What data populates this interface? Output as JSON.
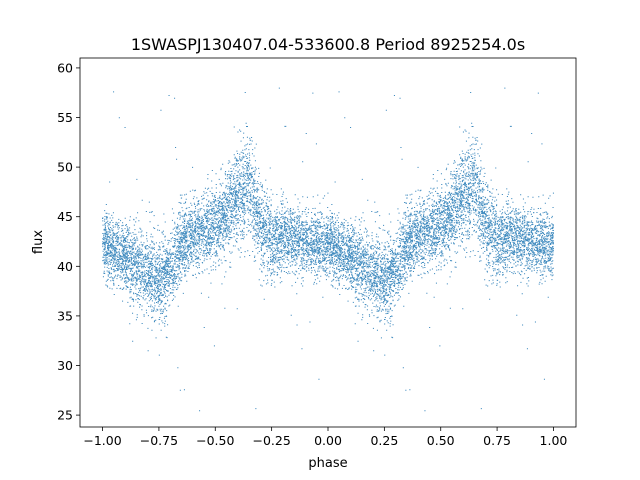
{
  "chart_data": {
    "type": "scatter",
    "title": "1SWASPJ130407.04-533600.8 Period 8925254.0s",
    "xlabel": "phase",
    "ylabel": "flux",
    "xlim": [
      -1.1,
      1.1
    ],
    "ylim": [
      23.8,
      61.0
    ],
    "xticks": [
      -1.0,
      -0.75,
      -0.5,
      -0.25,
      0.0,
      0.25,
      0.5,
      0.75,
      1.0
    ],
    "xtick_labels": [
      "−1.00",
      "−0.75",
      "−0.50",
      "−0.25",
      "0.00",
      "0.25",
      "0.50",
      "0.75",
      "1.00"
    ],
    "yticks": [
      25,
      30,
      35,
      40,
      45,
      50,
      55,
      60
    ],
    "ytick_labels": [
      "25",
      "30",
      "35",
      "40",
      "45",
      "50",
      "55",
      "60"
    ],
    "grid": false,
    "series": [
      {
        "color": "#1f77b4",
        "marker_size_pt": 0.4,
        "approx_point_count": 12000,
        "light_curve_phase": [
          0.0,
          0.05,
          0.1,
          0.15,
          0.2,
          0.25,
          0.3,
          0.35,
          0.4,
          0.45,
          0.5,
          0.55,
          0.6,
          0.65,
          0.7,
          0.75,
          0.8,
          0.85,
          0.9,
          0.95,
          1.0
        ],
        "light_curve_flux_center": [
          42.5,
          41.5,
          41.0,
          40.0,
          39.5,
          38.5,
          39.5,
          42.0,
          43.5,
          43.5,
          44.0,
          45.5,
          47.0,
          48.0,
          44.0,
          42.5,
          43.0,
          43.0,
          42.5,
          42.0,
          42.5
        ],
        "light_curve_flux_spread": [
          3.0,
          3.0,
          3.0,
          3.5,
          3.5,
          4.0,
          3.5,
          3.5,
          3.0,
          3.5,
          3.5,
          3.5,
          4.5,
          5.0,
          4.0,
          3.5,
          3.0,
          3.0,
          3.0,
          3.0,
          3.0
        ],
        "outlier_flux_range": [
          25.0,
          59.0
        ]
      }
    ]
  }
}
